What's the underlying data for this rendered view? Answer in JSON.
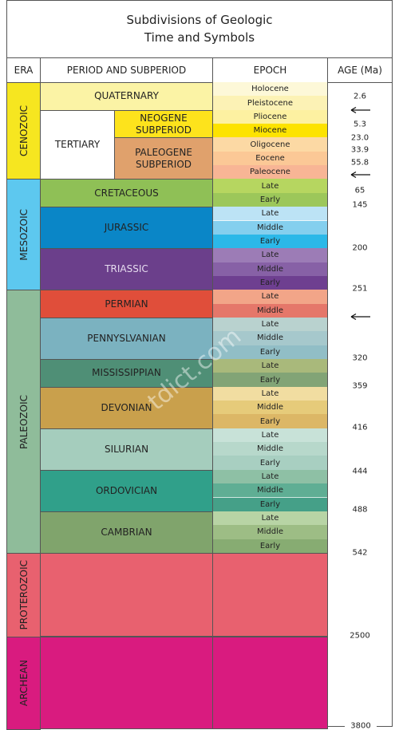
{
  "title": [
    "Subdivisions of Geologic",
    "Time and Symbols"
  ],
  "headers": {
    "era": "ERA",
    "period": "PERIOD AND SUBPERIOD",
    "epoch": "EPOCH",
    "age": "AGE (Ma)"
  },
  "eras": [
    {
      "name": "CENOZOIC",
      "color": "#f6e620",
      "periods": [
        {
          "name": "QUATERNARY",
          "color": "#fbf3a5",
          "epochs": [
            {
              "name": "Holocene",
              "color": "#fdf8d8"
            },
            {
              "name": "Pleistocene",
              "color": "#fcf2b5"
            }
          ]
        },
        {
          "name": "TERTIARY",
          "color": "#ffffff",
          "subperiods": [
            {
              "name": "NEOGENE SUBPERIOD",
              "color": "#fde31c",
              "epochs": [
                {
                  "name": "Pliocene",
                  "color": "#fdf1a1"
                },
                {
                  "name": "Miocene",
                  "color": "#fde300"
                }
              ]
            },
            {
              "name": "PALEOGENE SUBPERIOD",
              "color": "#e0a16c",
              "epochs": [
                {
                  "name": "Oligocene",
                  "color": "#fcd9a4"
                },
                {
                  "name": "Eocene",
                  "color": "#fbc896"
                },
                {
                  "name": "Paleocene",
                  "color": "#f8b595"
                }
              ]
            }
          ]
        }
      ]
    },
    {
      "name": "MESOZOIC",
      "color": "#5dc8ef",
      "periods": [
        {
          "name": "CRETACEOUS",
          "color": "#8fc056",
          "epochs": [
            {
              "name": "Late",
              "color": "#b6d660"
            },
            {
              "name": "Early",
              "color": "#9cc75a"
            }
          ]
        },
        {
          "name": "JURASSIC",
          "color": "#0a86c7",
          "epochs": [
            {
              "name": "Late",
              "color": "#bce3f5"
            },
            {
              "name": "Middle",
              "color": "#84cfee"
            },
            {
              "name": "Early",
              "color": "#2bb8e8"
            }
          ]
        },
        {
          "name": "TRIASSIC",
          "color": "#6b3f8b",
          "epochs": [
            {
              "name": "Late",
              "color": "#9c7cb6"
            },
            {
              "name": "Middle",
              "color": "#8761a6"
            },
            {
              "name": "Early",
              "color": "#6e3f90"
            }
          ]
        }
      ]
    },
    {
      "name": "PALEOZOIC",
      "color": "#8fbc9a",
      "periods": [
        {
          "name": "PERMIAN",
          "color": "#e04e3a",
          "epochs": [
            {
              "name": "Late",
              "color": "#f2a588"
            },
            {
              "name": "Middle",
              "color": "#e5776a"
            }
          ]
        },
        {
          "name": "PENNYSLVANIAN",
          "color": "#7bb2c0",
          "epochs": [
            {
              "name": "Late",
              "color": "#b9d2cf"
            },
            {
              "name": "Middle",
              "color": "#a6c8cc"
            },
            {
              "name": "Early",
              "color": "#91bec6"
            }
          ]
        },
        {
          "name": "MISSISSIPPIAN",
          "color": "#4f8f76",
          "epochs": [
            {
              "name": "Late",
              "color": "#a9b97b"
            },
            {
              "name": "Early",
              "color": "#82a476"
            }
          ]
        },
        {
          "name": "DEVONIAN",
          "color": "#c9a04c",
          "epochs": [
            {
              "name": "Late",
              "color": "#f1dda1"
            },
            {
              "name": "Middle",
              "color": "#e6cb7a"
            },
            {
              "name": "Early",
              "color": "#dcb766"
            }
          ]
        },
        {
          "name": "SILURIAN",
          "color": "#a5cdbd",
          "epochs": [
            {
              "name": "Late",
              "color": "#c8e2d8"
            },
            {
              "name": "Middle",
              "color": "#b7d8cb"
            },
            {
              "name": "Early",
              "color": "#a8cfc1"
            }
          ]
        },
        {
          "name": "ORDOVICIAN",
          "color": "#30a08a",
          "epochs": [
            {
              "name": "Late",
              "color": "#8ec0a5"
            },
            {
              "name": "Middle",
              "color": "#5fae94"
            },
            {
              "name": "Early",
              "color": "#45a088"
            }
          ]
        },
        {
          "name": "CAMBRIAN",
          "color": "#80a46c",
          "epochs": [
            {
              "name": "Late",
              "color": "#b8d4a5"
            },
            {
              "name": "Middle",
              "color": "#9dbd85"
            },
            {
              "name": "Early",
              "color": "#87ac72"
            }
          ]
        }
      ]
    },
    {
      "name": "PROTEROZOIC",
      "color": "#e8616f"
    },
    {
      "name": "ARCHEAN",
      "color": "#d91b7f"
    }
  ],
  "ages": [
    "2.6",
    "5.3",
    "23.0",
    "33.9",
    "55.8",
    "65",
    "145",
    "200",
    "251",
    "320",
    "359",
    "416",
    "444",
    "488",
    "542",
    "2500",
    "3800"
  ],
  "watermark": "tdict.com"
}
